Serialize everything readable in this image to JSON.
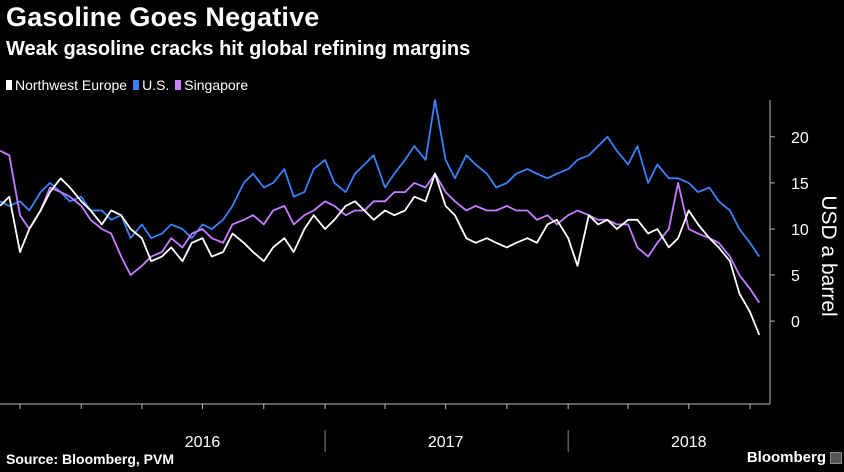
{
  "header": {
    "title": "Gasoline Goes Negative",
    "subtitle": "Weak gasoline cracks hit global refining margins"
  },
  "footer": {
    "source": "Source: Bloomberg, PVM",
    "brand": "Bloomberg"
  },
  "colors": {
    "background": "#000000",
    "northwest_europe": "#ffffff",
    "us": "#3b82f6",
    "singapore": "#c77dff",
    "axis": "#bbbbbb"
  },
  "chart_data": {
    "type": "line",
    "ylabel": "USD a barrel",
    "ylim": [
      -9,
      24
    ],
    "yticks": [
      0,
      5,
      10,
      15,
      20
    ],
    "xlim": [
      "2015-09-01",
      "2018-10-31"
    ],
    "year_labels": [
      {
        "label": "2016",
        "date": "2016-07-01"
      },
      {
        "label": "2017",
        "date": "2017-07-01"
      },
      {
        "label": "2018",
        "date": "2018-07-01"
      }
    ],
    "year_dividers": [
      "2017-01-01",
      "2018-01-01"
    ],
    "legend_position": "top-left",
    "grid": false,
    "series": [
      {
        "name": "Northwest Europe",
        "color": "#ffffff",
        "x": [
          "2015-09-01",
          "2015-09-15",
          "2015-10-01",
          "2015-10-15",
          "2015-11-01",
          "2015-11-15",
          "2015-12-01",
          "2015-12-15",
          "2016-01-01",
          "2016-01-15",
          "2016-02-01",
          "2016-02-15",
          "2016-03-01",
          "2016-03-15",
          "2016-04-01",
          "2016-04-15",
          "2016-05-01",
          "2016-05-15",
          "2016-06-01",
          "2016-06-15",
          "2016-07-01",
          "2016-07-15",
          "2016-08-01",
          "2016-08-15",
          "2016-09-01",
          "2016-09-15",
          "2016-10-01",
          "2016-10-15",
          "2016-11-01",
          "2016-11-15",
          "2016-12-01",
          "2016-12-15",
          "2017-01-01",
          "2017-01-15",
          "2017-02-01",
          "2017-02-15",
          "2017-03-01",
          "2017-03-15",
          "2017-04-01",
          "2017-04-15",
          "2017-05-01",
          "2017-05-15",
          "2017-06-01",
          "2017-06-15",
          "2017-07-01",
          "2017-07-15",
          "2017-08-01",
          "2017-08-15",
          "2017-09-01",
          "2017-09-15",
          "2017-10-01",
          "2017-10-15",
          "2017-11-01",
          "2017-11-15",
          "2017-12-01",
          "2017-12-15",
          "2018-01-01",
          "2018-01-15",
          "2018-02-01",
          "2018-02-15",
          "2018-03-01",
          "2018-03-15",
          "2018-04-01",
          "2018-04-15",
          "2018-05-01",
          "2018-05-15",
          "2018-06-01",
          "2018-06-15",
          "2018-07-01",
          "2018-07-15",
          "2018-08-01",
          "2018-08-15",
          "2018-09-01",
          "2018-09-15",
          "2018-10-01",
          "2018-10-15"
        ],
        "y": [
          12.5,
          13.5,
          7.5,
          10,
          12,
          14,
          15.5,
          14.5,
          13,
          12,
          10.5,
          12,
          11.5,
          10,
          9,
          6.5,
          7,
          8,
          6.5,
          8.5,
          9,
          7,
          7.5,
          9.5,
          8.5,
          7.5,
          6.5,
          8,
          9,
          7.5,
          10,
          11.5,
          10,
          11,
          12.5,
          13,
          12,
          11,
          12,
          11.5,
          12,
          13.5,
          13,
          16,
          12.5,
          11.5,
          9,
          8.5,
          9,
          8.5,
          8,
          8.5,
          9,
          8.5,
          10.5,
          11,
          9,
          6,
          11.5,
          10.5,
          11,
          10,
          11,
          11,
          9.5,
          10,
          8,
          9,
          12,
          10.5,
          9,
          8,
          6.5,
          3,
          1,
          -1.5
        ]
      },
      {
        "name": "U.S.",
        "color": "#3b82f6",
        "x": [
          "2015-09-01",
          "2015-09-15",
          "2015-10-01",
          "2015-10-15",
          "2015-11-01",
          "2015-11-15",
          "2015-12-01",
          "2015-12-15",
          "2016-01-01",
          "2016-01-15",
          "2016-02-01",
          "2016-02-15",
          "2016-03-01",
          "2016-03-15",
          "2016-04-01",
          "2016-04-15",
          "2016-05-01",
          "2016-05-15",
          "2016-06-01",
          "2016-06-15",
          "2016-07-01",
          "2016-07-15",
          "2016-08-01",
          "2016-08-15",
          "2016-09-01",
          "2016-09-15",
          "2016-10-01",
          "2016-10-15",
          "2016-11-01",
          "2016-11-15",
          "2016-12-01",
          "2016-12-15",
          "2017-01-01",
          "2017-01-15",
          "2017-02-01",
          "2017-02-15",
          "2017-03-01",
          "2017-03-15",
          "2017-04-01",
          "2017-04-15",
          "2017-05-01",
          "2017-05-15",
          "2017-06-01",
          "2017-06-15",
          "2017-07-01",
          "2017-07-15",
          "2017-08-01",
          "2017-08-15",
          "2017-09-01",
          "2017-09-15",
          "2017-10-01",
          "2017-10-15",
          "2017-11-01",
          "2017-11-15",
          "2017-12-01",
          "2017-12-15",
          "2018-01-01",
          "2018-01-15",
          "2018-02-01",
          "2018-02-15",
          "2018-03-01",
          "2018-03-15",
          "2018-04-01",
          "2018-04-15",
          "2018-05-01",
          "2018-05-15",
          "2018-06-01",
          "2018-06-15",
          "2018-07-01",
          "2018-07-15",
          "2018-08-01",
          "2018-08-15",
          "2018-09-01",
          "2018-09-15",
          "2018-10-01",
          "2018-10-15"
        ],
        "y": [
          13,
          12.5,
          13,
          12,
          14,
          15,
          14,
          13,
          13.5,
          12,
          12,
          11,
          11.5,
          9,
          10.5,
          9,
          9.5,
          10.5,
          10,
          9,
          10.5,
          10,
          11,
          12.5,
          15,
          16,
          14.5,
          15,
          16.5,
          13.5,
          14,
          16.5,
          17.5,
          15,
          14,
          16,
          17,
          18,
          14.5,
          16,
          17.5,
          19,
          17.5,
          24,
          17.5,
          15.5,
          18,
          17,
          16,
          14.5,
          15,
          16,
          16.5,
          16,
          15.5,
          16,
          16.5,
          17.5,
          18,
          19,
          20,
          18.5,
          17,
          19,
          15,
          17,
          15.5,
          15.5,
          15,
          14,
          14.5,
          13,
          12,
          10,
          8.5,
          7
        ]
      },
      {
        "name": "Singapore",
        "color": "#c77dff",
        "x": [
          "2015-09-01",
          "2015-09-15",
          "2015-10-01",
          "2015-10-15",
          "2015-11-01",
          "2015-11-15",
          "2015-12-01",
          "2015-12-15",
          "2016-01-01",
          "2016-01-15",
          "2016-02-01",
          "2016-02-15",
          "2016-03-01",
          "2016-03-15",
          "2016-04-01",
          "2016-04-15",
          "2016-05-01",
          "2016-05-15",
          "2016-06-01",
          "2016-06-15",
          "2016-07-01",
          "2016-07-15",
          "2016-08-01",
          "2016-08-15",
          "2016-09-01",
          "2016-09-15",
          "2016-10-01",
          "2016-10-15",
          "2016-11-01",
          "2016-11-15",
          "2016-12-01",
          "2016-12-15",
          "2017-01-01",
          "2017-01-15",
          "2017-02-01",
          "2017-02-15",
          "2017-03-01",
          "2017-03-15",
          "2017-04-01",
          "2017-04-15",
          "2017-05-01",
          "2017-05-15",
          "2017-06-01",
          "2017-06-15",
          "2017-07-01",
          "2017-07-15",
          "2017-08-01",
          "2017-08-15",
          "2017-09-01",
          "2017-09-15",
          "2017-10-01",
          "2017-10-15",
          "2017-11-01",
          "2017-11-15",
          "2017-12-01",
          "2017-12-15",
          "2018-01-01",
          "2018-01-15",
          "2018-02-01",
          "2018-02-15",
          "2018-03-01",
          "2018-03-15",
          "2018-04-01",
          "2018-04-15",
          "2018-05-01",
          "2018-05-15",
          "2018-06-01",
          "2018-06-15",
          "2018-07-01",
          "2018-07-15",
          "2018-08-01",
          "2018-08-15",
          "2018-09-01",
          "2018-09-15",
          "2018-10-01",
          "2018-10-15"
        ],
        "y": [
          18.5,
          18,
          11.5,
          10,
          12,
          14.5,
          14,
          13.5,
          12.5,
          11,
          10,
          9.5,
          7,
          5,
          6,
          7,
          7.5,
          9,
          8,
          9.5,
          10,
          9,
          8.5,
          10.5,
          11,
          11.5,
          10.5,
          12,
          12.5,
          10.5,
          11.5,
          12,
          13,
          12.5,
          11.5,
          12,
          12,
          13,
          13,
          14,
          14,
          15,
          14.5,
          16,
          14,
          13,
          12,
          12.5,
          12,
          12,
          12.5,
          12,
          12,
          11,
          11.5,
          10.5,
          11.5,
          12,
          11.5,
          11,
          11,
          10.5,
          10.5,
          8,
          7,
          8.5,
          10,
          15,
          10,
          9.5,
          9,
          8.5,
          7,
          5,
          3.5,
          2
        ]
      }
    ]
  }
}
